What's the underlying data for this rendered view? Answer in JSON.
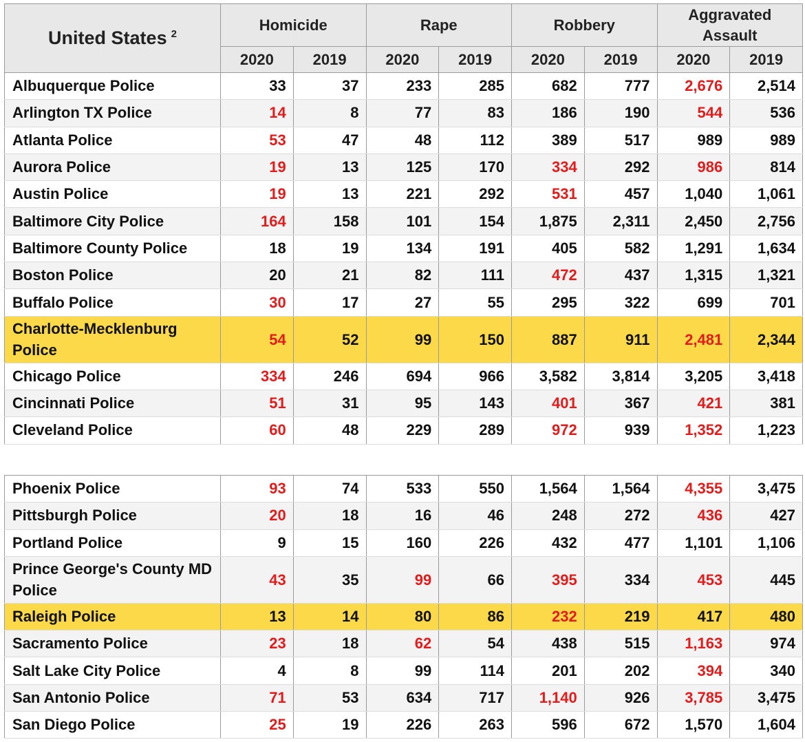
{
  "header": {
    "title": "United States",
    "title_sup": "2",
    "groups": [
      "Homicide",
      "Rape",
      "Robbery",
      "Aggravated Assault"
    ],
    "years": [
      "2020",
      "2019",
      "2020",
      "2019",
      "2020",
      "2019",
      "2020",
      "2019"
    ]
  },
  "colors": {
    "increase": "#e31b1b",
    "highlight": "#fbd949"
  },
  "table_top": [
    {
      "name": "Albuquerque Police",
      "values": [
        "33",
        "37",
        "233",
        "285",
        "682",
        "777",
        "2,676",
        "2,514"
      ],
      "red": [
        6
      ]
    },
    {
      "name": "Arlington TX Police",
      "values": [
        "14",
        "8",
        "77",
        "83",
        "186",
        "190",
        "544",
        "536"
      ],
      "red": [
        0,
        6
      ]
    },
    {
      "name": "Atlanta Police",
      "values": [
        "53",
        "47",
        "48",
        "112",
        "389",
        "517",
        "989",
        "989"
      ],
      "red": [
        0
      ]
    },
    {
      "name": "Aurora Police",
      "values": [
        "19",
        "13",
        "125",
        "170",
        "334",
        "292",
        "986",
        "814"
      ],
      "red": [
        0,
        4,
        6
      ]
    },
    {
      "name": "Austin Police",
      "values": [
        "19",
        "13",
        "221",
        "292",
        "531",
        "457",
        "1,040",
        "1,061"
      ],
      "red": [
        0,
        4
      ]
    },
    {
      "name": "Baltimore City Police",
      "values": [
        "164",
        "158",
        "101",
        "154",
        "1,875",
        "2,311",
        "2,450",
        "2,756"
      ],
      "red": [
        0
      ]
    },
    {
      "name": "Baltimore County Police",
      "values": [
        "18",
        "19",
        "134",
        "191",
        "405",
        "582",
        "1,291",
        "1,634"
      ],
      "red": []
    },
    {
      "name": "Boston Police",
      "values": [
        "20",
        "21",
        "82",
        "111",
        "472",
        "437",
        "1,315",
        "1,321"
      ],
      "red": [
        4
      ]
    },
    {
      "name": "Buffalo Police",
      "values": [
        "30",
        "17",
        "27",
        "55",
        "295",
        "322",
        "699",
        "701"
      ],
      "red": [
        0
      ]
    },
    {
      "name": "Charlotte-Mecklenburg Police",
      "values": [
        "54",
        "52",
        "99",
        "150",
        "887",
        "911",
        "2,481",
        "2,344"
      ],
      "red": [
        0,
        6
      ],
      "highlight": true,
      "tall": true
    },
    {
      "name": "Chicago Police",
      "values": [
        "334",
        "246",
        "694",
        "966",
        "3,582",
        "3,814",
        "3,205",
        "3,418"
      ],
      "red": [
        0
      ]
    },
    {
      "name": "Cincinnati Police",
      "values": [
        "51",
        "31",
        "95",
        "143",
        "401",
        "367",
        "421",
        "381"
      ],
      "red": [
        0,
        4,
        6
      ]
    },
    {
      "name": "Cleveland Police",
      "values": [
        "60",
        "48",
        "229",
        "289",
        "972",
        "939",
        "1,352",
        "1,223"
      ],
      "red": [
        0,
        4,
        6
      ]
    }
  ],
  "table_bottom": [
    {
      "name": "Phoenix Police",
      "values": [
        "93",
        "74",
        "533",
        "550",
        "1,564",
        "1,564",
        "4,355",
        "3,475"
      ],
      "red": [
        0,
        6
      ]
    },
    {
      "name": "Pittsburgh Police",
      "values": [
        "20",
        "18",
        "16",
        "46",
        "248",
        "272",
        "436",
        "427"
      ],
      "red": [
        0,
        6
      ]
    },
    {
      "name": "Portland Police",
      "values": [
        "9",
        "15",
        "160",
        "226",
        "432",
        "477",
        "1,101",
        "1,106"
      ],
      "red": []
    },
    {
      "name": "Prince George's County MD Police",
      "values": [
        "43",
        "35",
        "99",
        "66",
        "395",
        "334",
        "453",
        "445"
      ],
      "red": [
        0,
        2,
        4,
        6
      ],
      "tall": true
    },
    {
      "name": "Raleigh Police",
      "values": [
        "13",
        "14",
        "80",
        "86",
        "232",
        "219",
        "417",
        "480"
      ],
      "red": [
        4
      ],
      "highlight": true
    },
    {
      "name": "Sacramento Police",
      "values": [
        "23",
        "18",
        "62",
        "54",
        "438",
        "515",
        "1,163",
        "974"
      ],
      "red": [
        0,
        2,
        6
      ]
    },
    {
      "name": "Salt Lake City Police",
      "values": [
        "4",
        "8",
        "99",
        "114",
        "201",
        "202",
        "394",
        "340"
      ],
      "red": [
        6
      ]
    },
    {
      "name": "San Antonio Police",
      "values": [
        "71",
        "53",
        "634",
        "717",
        "1,140",
        "926",
        "3,785",
        "3,475"
      ],
      "red": [
        0,
        4,
        6
      ]
    },
    {
      "name": "San Diego Police",
      "values": [
        "25",
        "19",
        "226",
        "263",
        "596",
        "672",
        "1,570",
        "1,604"
      ],
      "red": [
        0
      ]
    }
  ]
}
